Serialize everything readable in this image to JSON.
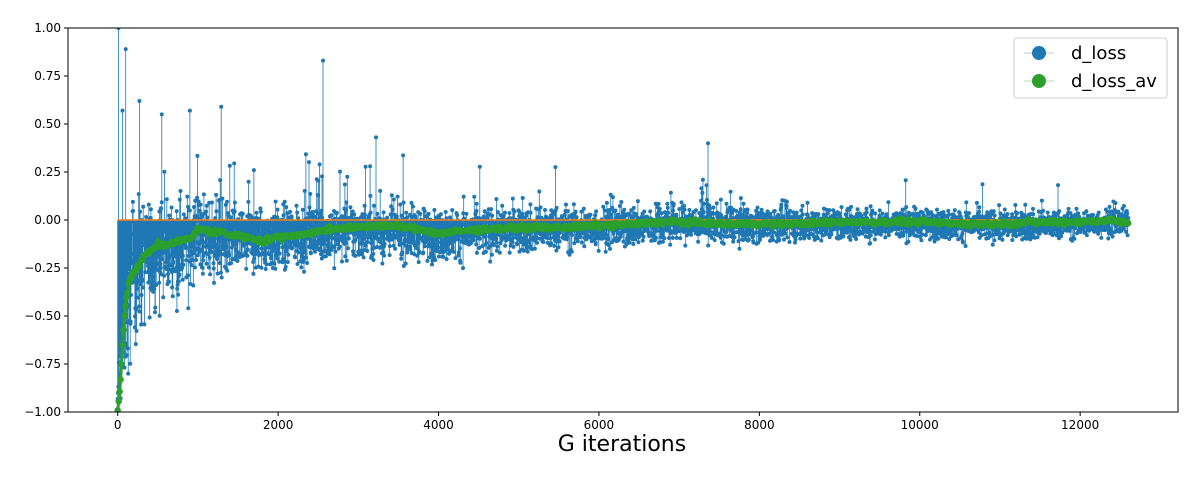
{
  "chart_data": {
    "type": "line",
    "title": "",
    "xlabel": "G iterations",
    "ylabel": "",
    "xlim": [
      -620,
      13220
    ],
    "ylim": [
      -1.0,
      1.0
    ],
    "x_ticks": [
      0,
      2000,
      4000,
      6000,
      8000,
      10000,
      12000
    ],
    "y_ticks": [
      -1.0,
      -0.75,
      -0.5,
      -0.25,
      0.0,
      0.25,
      0.5,
      0.75,
      1.0
    ],
    "x_tick_labels": [
      "0",
      "2000",
      "4000",
      "6000",
      "8000",
      "10000",
      "12000"
    ],
    "y_tick_labels": [
      "−1.00",
      "−0.75",
      "−0.50",
      "−0.25",
      "0.00",
      "0.25",
      "0.50",
      "0.75",
      "1.00"
    ],
    "grid": false,
    "legend_position": "top-right",
    "series": [
      {
        "name": "d_loss",
        "color": "#1f77b4",
        "style": "stem-markers",
        "x": [
          0,
          25,
          50,
          75,
          100,
          150,
          200,
          300,
          400,
          500,
          600,
          800,
          1000,
          1200,
          1500,
          2000,
          2500,
          3000,
          3500,
          4000,
          5000,
          6000,
          7000,
          8000,
          9000,
          10000,
          11000,
          12000,
          12600
        ],
        "y_center": [
          -0.95,
          -0.75,
          -0.6,
          -0.5,
          -0.42,
          -0.35,
          -0.3,
          -0.24,
          -0.2,
          -0.17,
          -0.15,
          -0.13,
          -0.08,
          -0.1,
          -0.11,
          -0.1,
          -0.07,
          -0.06,
          -0.06,
          -0.08,
          -0.05,
          -0.04,
          -0.02,
          -0.02,
          -0.02,
          -0.02,
          -0.03,
          -0.02,
          -0.01
        ],
        "y_spread": [
          0.05,
          0.35,
          0.45,
          0.48,
          0.5,
          0.48,
          0.45,
          0.42,
          0.38,
          0.34,
          0.32,
          0.3,
          0.28,
          0.26,
          0.24,
          0.22,
          0.2,
          0.19,
          0.18,
          0.17,
          0.15,
          0.14,
          0.13,
          0.12,
          0.11,
          0.1,
          0.1,
          0.09,
          0.09
        ],
        "notable_points": [
          {
            "x": 10,
            "y": 1.0
          },
          {
            "x": 100,
            "y": 0.89
          },
          {
            "x": 60,
            "y": 0.57
          },
          {
            "x": 270,
            "y": 0.62
          },
          {
            "x": 550,
            "y": 0.55
          },
          {
            "x": 900,
            "y": 0.57
          },
          {
            "x": 1290,
            "y": 0.59
          },
          {
            "x": 2560,
            "y": 0.83
          },
          {
            "x": 3220,
            "y": 0.43
          },
          {
            "x": 7360,
            "y": 0.4
          },
          {
            "x": 880,
            "y": -0.46
          },
          {
            "x": 130,
            "y": -0.8
          }
        ]
      },
      {
        "name": "d_loss_av",
        "color": "#2ca02c",
        "style": "line-markers",
        "x": [
          0,
          20,
          40,
          60,
          80,
          100,
          130,
          160,
          200,
          250,
          300,
          350,
          400,
          500,
          600,
          700,
          800,
          900,
          1000,
          1100,
          1200,
          1300,
          1400,
          1500,
          1600,
          1700,
          1800,
          1900,
          2000,
          2200,
          2400,
          2600,
          2800,
          3000,
          3200,
          3400,
          3600,
          3800,
          4000,
          4200,
          4500,
          5000,
          5500,
          6000,
          6500,
          6800,
          7000,
          7500,
          8000,
          8500,
          9000,
          9500,
          10000,
          10500,
          11000,
          11500,
          12000,
          12400,
          12600
        ],
        "y": [
          -0.99,
          -0.92,
          -0.8,
          -0.65,
          -0.52,
          -0.42,
          -0.34,
          -0.3,
          -0.27,
          -0.24,
          -0.21,
          -0.18,
          -0.16,
          -0.13,
          -0.13,
          -0.12,
          -0.1,
          -0.1,
          -0.05,
          -0.05,
          -0.07,
          -0.06,
          -0.08,
          -0.08,
          -0.09,
          -0.1,
          -0.11,
          -0.1,
          -0.09,
          -0.08,
          -0.07,
          -0.05,
          -0.04,
          -0.04,
          -0.03,
          -0.03,
          -0.04,
          -0.05,
          -0.07,
          -0.06,
          -0.05,
          -0.04,
          -0.04,
          -0.03,
          -0.02,
          -0.01,
          -0.01,
          -0.02,
          -0.02,
          -0.02,
          -0.01,
          -0.01,
          -0.01,
          -0.02,
          -0.02,
          -0.01,
          -0.01,
          0.0,
          -0.02
        ]
      },
      {
        "name": "",
        "color": "#ff7f0e",
        "style": "line",
        "x": [
          0,
          12600
        ],
        "y": [
          0.0,
          0.0
        ]
      }
    ]
  }
}
